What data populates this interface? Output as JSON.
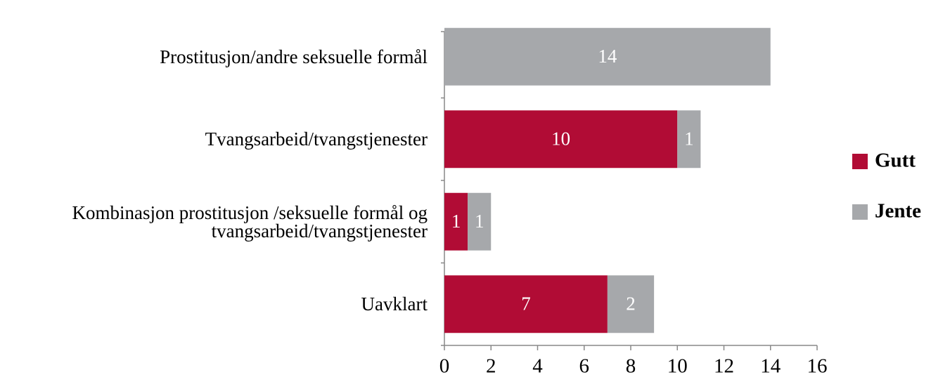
{
  "chart_data": {
    "type": "stacked_barh",
    "categories": [
      "Prostitusjon/andre seksuelle formål",
      "Tvangsarbeid/tvangstjenester",
      "Kombinasjon prostitusjon /seksuelle formål og\ntvangsarbeid/tvangstjenester",
      "Uavklart"
    ],
    "series": [
      {
        "name": "Gutt",
        "color": "#b10c35",
        "values": [
          null,
          10,
          1,
          7
        ]
      },
      {
        "name": "Jente",
        "color": "#a6a8ab",
        "values": [
          14,
          1,
          1,
          2
        ]
      }
    ],
    "xlim": [
      0,
      16
    ],
    "xticks": [
      0,
      2,
      4,
      6,
      8,
      10,
      12,
      14,
      16
    ],
    "legend": "right"
  }
}
